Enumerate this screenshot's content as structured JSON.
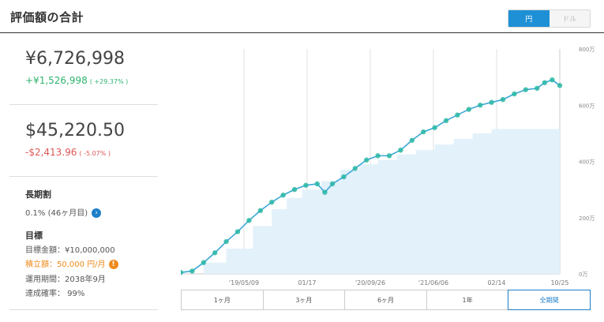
{
  "header": {
    "title": "評価額の合計"
  },
  "currency_toggle": {
    "jpy": "円",
    "usd": "ドル",
    "selected": "円"
  },
  "jpy_block": {
    "value": "¥6,726,998",
    "change": "+¥1,526,998",
    "change_pct": "( +29.37% )"
  },
  "usd_block": {
    "value": "$45,220.50",
    "change": "-$2,413.96",
    "change_pct": "( -5.07% )"
  },
  "long_term": {
    "title": "長期割",
    "value": "0.1% (46ヶ月目)"
  },
  "goal": {
    "title": "目標",
    "target_amount": "目標金額：¥10,000,000",
    "savings": "積立額：50,000 円/月",
    "period": "運用期間：2038年9月",
    "probability": "達成確率： 99%"
  },
  "range_buttons": [
    "1ヶ月",
    "3ヶ月",
    "6ヶ月",
    "1年",
    "全期間"
  ],
  "range_selected": "全期間",
  "colors": {
    "accent": "#1e7fc8",
    "positive": "#2fb36e",
    "negative": "#e05757",
    "warning": "#f08a1c",
    "line": "#2ab7a5",
    "area": "#e3f1fa"
  },
  "chart_data": {
    "type": "area",
    "x_ticks": [
      "'19/05/09",
      "01/17",
      "'20/09/26",
      "'21/06/06",
      "02/14",
      "10/25"
    ],
    "y_ticks": [
      "0万",
      "200万",
      "400万",
      "600万",
      "800万"
    ],
    "ylim": [
      0,
      800
    ],
    "y_unit": "万",
    "series": [
      {
        "kind": "area",
        "x": [
          0,
          0.06,
          0.12,
          0.19,
          0.24,
          0.28,
          0.32,
          0.37,
          0.42,
          0.47,
          0.52,
          0.57,
          0.62,
          0.67,
          0.72,
          0.77,
          0.82,
          1.0
        ],
        "values": [
          0,
          40,
          90,
          170,
          230,
          270,
          300,
          330,
          370,
          390,
          405,
          425,
          440,
          460,
          480,
          500,
          515,
          515
        ]
      },
      {
        "kind": "line",
        "x": [
          0,
          0.03,
          0.06,
          0.09,
          0.12,
          0.15,
          0.18,
          0.21,
          0.24,
          0.27,
          0.3,
          0.33,
          0.36,
          0.38,
          0.4,
          0.43,
          0.46,
          0.49,
          0.52,
          0.55,
          0.58,
          0.61,
          0.64,
          0.67,
          0.7,
          0.73,
          0.76,
          0.79,
          0.82,
          0.85,
          0.88,
          0.91,
          0.94,
          0.96,
          0.98,
          1.0
        ],
        "values": [
          5,
          10,
          40,
          75,
          115,
          150,
          190,
          225,
          255,
          280,
          300,
          315,
          320,
          290,
          320,
          345,
          375,
          405,
          420,
          420,
          440,
          475,
          505,
          520,
          545,
          565,
          585,
          600,
          610,
          620,
          640,
          655,
          660,
          680,
          690,
          670
        ]
      }
    ]
  }
}
